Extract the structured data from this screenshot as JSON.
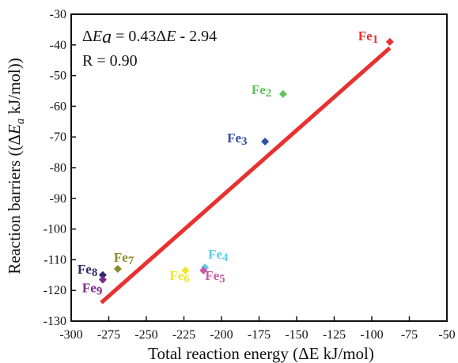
{
  "chart_data": {
    "type": "scatter",
    "xlabel": "Total reaction energy (ΔE kJ/mol)",
    "ylabel_parts": [
      "Reaction barriers ((Δ",
      "E",
      "a",
      " kJ/mol))"
    ],
    "xlim": [
      -300,
      -50
    ],
    "ylim": [
      -130,
      -30
    ],
    "x_ticks": [
      -300,
      -275,
      -250,
      -225,
      -200,
      -175,
      -150,
      -125,
      -100,
      -75,
      -50
    ],
    "y_ticks": [
      -30,
      -40,
      -50,
      -60,
      -70,
      -80,
      -90,
      -100,
      -110,
      -120,
      -130
    ],
    "grid": false,
    "annotations": {
      "equation_parts": [
        "Δ",
        "E",
        "a",
        " = 0.43Δ",
        "E",
        " - 2.94"
      ],
      "r_value": "R = 0.90"
    },
    "points": [
      {
        "prefix": "Fe",
        "index": "1",
        "x": -88,
        "y": -39,
        "color": "#e8312f"
      },
      {
        "prefix": "Fe",
        "index": "2",
        "x": -159,
        "y": -56,
        "color": "#5ec35a"
      },
      {
        "prefix": "Fe",
        "index": "3",
        "x": -171,
        "y": -71.5,
        "color": "#2f4fa8"
      },
      {
        "prefix": "Fe",
        "index": "4",
        "x": -211,
        "y": -112.5,
        "color": "#5ecbe8"
      },
      {
        "prefix": "Fe",
        "index": "5",
        "x": -212,
        "y": -113.5,
        "color": "#c55ba8"
      },
      {
        "prefix": "Fe",
        "index": "6",
        "x": -224,
        "y": -113.5,
        "color": "#f0e628"
      },
      {
        "prefix": "Fe",
        "index": "7",
        "x": -269,
        "y": -113,
        "color": "#8a8a2a"
      },
      {
        "prefix": "Fe",
        "index": "8",
        "x": -279,
        "y": -115,
        "color": "#2d2a6e"
      },
      {
        "prefix": "Fe",
        "index": "9",
        "x": -279,
        "y": -116.5,
        "color": "#7a2a8a"
      }
    ],
    "fit_line": {
      "x": [
        -280,
        -88
      ],
      "y": [
        -124,
        -41
      ],
      "color": "#e8312f"
    }
  }
}
